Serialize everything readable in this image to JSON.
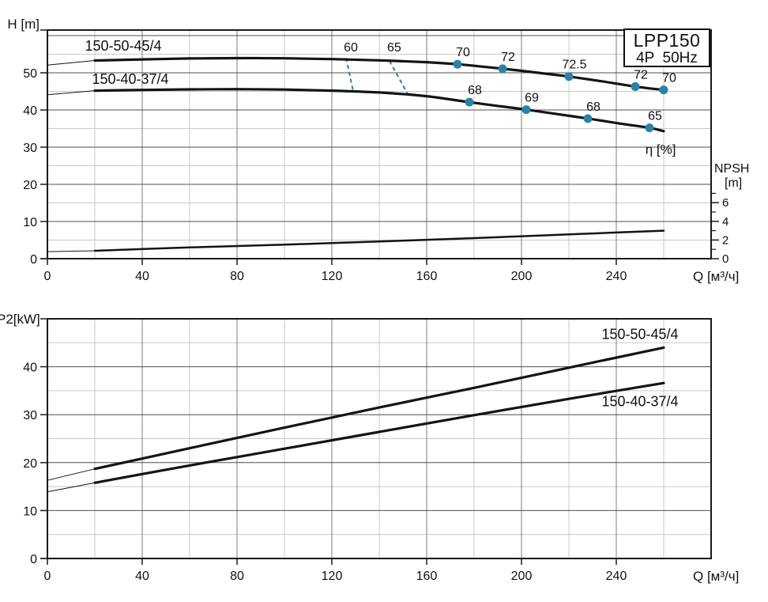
{
  "colors": {
    "accent": "#2b82a6",
    "curve": "#141414",
    "grid_minor": "#c9c9c9",
    "grid_major_h": "#4f4f4f",
    "grid_major_v": "#7d7d7d",
    "frame": "#1a1a1a"
  },
  "chart_data": [
    {
      "id": "head-capacity",
      "type": "line",
      "ylabel": "H [m]",
      "xlabel": "Q [м³/ч]",
      "xlim": [
        0,
        280
      ],
      "ylim": [
        0,
        61.5
      ],
      "xticks": [
        0,
        40,
        80,
        120,
        160,
        200,
        240
      ],
      "yticks": [
        0,
        10,
        20,
        30,
        40,
        50
      ],
      "x_minor_step": 20,
      "y_minor_step": 5,
      "grid": "on",
      "legend_position": "labels-on-curves",
      "title_box": {
        "line1": "LPP150",
        "line2": "4P  50Hz"
      },
      "eta_label": {
        "text": "η [%]",
        "q": 258.7,
        "h": 28.2
      },
      "series": [
        {
          "name": "150-50-45/4",
          "label_pos": {
            "q": 32,
            "h": 56.0
          },
          "leader": [
            [
              0,
              52.1
            ],
            [
              20,
              53.3
            ]
          ],
          "points": [
            [
              20,
              53.3
            ],
            [
              40,
              53.6
            ],
            [
              60,
              53.85
            ],
            [
              80,
              53.95
            ],
            [
              100,
              53.9
            ],
            [
              120,
              53.7
            ],
            [
              140,
              53.35
            ],
            [
              160,
              52.85
            ],
            [
              173,
              52.3
            ],
            [
              192,
              51.1
            ],
            [
              206,
              50.1
            ],
            [
              220,
              49.0
            ],
            [
              234,
              47.7
            ],
            [
              248,
              46.3
            ],
            [
              260,
              45.4
            ]
          ],
          "efficiency_points": [
            {
              "q": 173,
              "h": 52.3,
              "label": "70"
            },
            {
              "q": 192,
              "h": 51.1,
              "label": "72"
            },
            {
              "q": 220,
              "h": 49.0,
              "label": "72.5"
            },
            {
              "q": 248,
              "h": 46.3,
              "label": "72"
            },
            {
              "q": 260,
              "h": 45.4,
              "label": "70"
            }
          ]
        },
        {
          "name": "150-40-37/4",
          "label_pos": {
            "q": 35,
            "h": 47.0
          },
          "leader": [
            [
              0,
              44.1
            ],
            [
              20,
              45.2
            ]
          ],
          "points": [
            [
              20,
              45.2
            ],
            [
              40,
              45.4
            ],
            [
              60,
              45.55
            ],
            [
              80,
              45.6
            ],
            [
              100,
              45.5
            ],
            [
              120,
              45.2
            ],
            [
              140,
              44.7
            ],
            [
              160,
              43.7
            ],
            [
              178,
              42.1
            ],
            [
              190,
              41.1
            ],
            [
              202,
              40.1
            ],
            [
              215,
              38.9
            ],
            [
              228,
              37.7
            ],
            [
              241,
              36.4
            ],
            [
              254,
              35.2
            ],
            [
              260,
              34.3
            ]
          ],
          "efficiency_points": [
            {
              "q": 178,
              "h": 42.1,
              "label": "68"
            },
            {
              "q": 202,
              "h": 40.1,
              "label": "69"
            },
            {
              "q": 228,
              "h": 37.7,
              "label": "68"
            },
            {
              "q": 254,
              "h": 35.2,
              "label": "65"
            }
          ]
        }
      ],
      "efficiency_contours": [
        {
          "label": "60",
          "label_q": 128,
          "label_h": 55.8,
          "x1": 126,
          "y1": 54.0,
          "x2": 129,
          "y2": 45.1
        },
        {
          "label": "65",
          "label_q": 146.3,
          "label_h": 55.8,
          "x1": 144.3,
          "y1": 53.2,
          "x2": 152.3,
          "y2": 44.0
        }
      ],
      "npsh": {
        "axis_label_line1": "NPSH",
        "axis_label_line2": "[m]",
        "ticks": [
          0,
          2,
          4,
          6
        ],
        "minor_ticks": [
          1,
          3,
          5,
          7
        ],
        "leader": [
          [
            0,
            0.75
          ],
          [
            20,
            0.85
          ]
        ],
        "points": [
          [
            20,
            0.85
          ],
          [
            60,
            1.2
          ],
          [
            100,
            1.5
          ],
          [
            140,
            1.85
          ],
          [
            180,
            2.2
          ],
          [
            220,
            2.6
          ],
          [
            260,
            3.0
          ]
        ]
      }
    },
    {
      "id": "power",
      "type": "line",
      "ylabel": "P2[kW]",
      "xlabel": "Q [м³/ч]",
      "xlim": [
        0,
        280
      ],
      "ylim": [
        0,
        50
      ],
      "xticks": [
        0,
        40,
        80,
        120,
        160,
        200,
        240
      ],
      "yticks": [
        0,
        10,
        20,
        30,
        40
      ],
      "x_minor_step": 20,
      "y_minor_step": 5,
      "grid": "on",
      "legend_position": "labels-on-curves",
      "series": [
        {
          "name": "150-50-45/4",
          "label_pos": {
            "q": 250,
            "h": 45.8
          },
          "leader": [
            [
              0,
              16.3
            ],
            [
              20,
              18.7
            ]
          ],
          "points": [
            [
              20,
              18.7
            ],
            [
              60,
              23.0
            ],
            [
              100,
              27.3
            ],
            [
              140,
              31.5
            ],
            [
              180,
              35.6
            ],
            [
              220,
              39.8
            ],
            [
              260,
              44.0
            ]
          ]
        },
        {
          "name": "150-40-37/4",
          "label_pos": {
            "q": 250,
            "h": 31.8
          },
          "leader": [
            [
              0,
              13.9
            ],
            [
              20,
              15.8
            ]
          ],
          "points": [
            [
              20,
              15.8
            ],
            [
              60,
              19.4
            ],
            [
              100,
              22.9
            ],
            [
              140,
              26.4
            ],
            [
              180,
              29.9
            ],
            [
              220,
              33.3
            ],
            [
              260,
              36.6
            ]
          ]
        }
      ]
    }
  ]
}
